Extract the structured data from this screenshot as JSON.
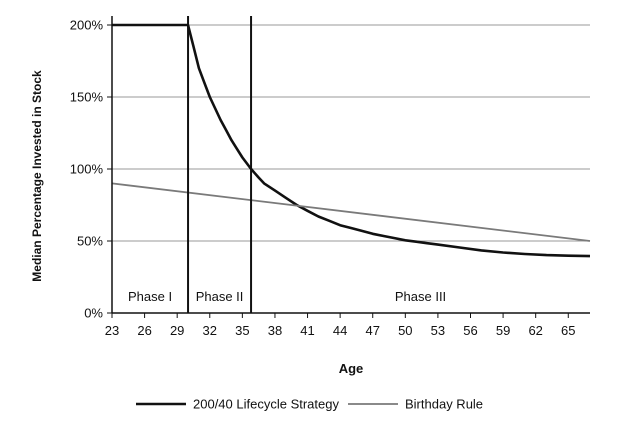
{
  "chart_data": {
    "type": "line",
    "title": "",
    "xlabel": "Age",
    "ylabel": "Median Percentage Invested in Stock",
    "xlim": [
      23,
      67
    ],
    "ylim": [
      0,
      200
    ],
    "x_ticks": [
      "23",
      "26",
      "29",
      "32",
      "35",
      "38",
      "41",
      "44",
      "47",
      "50",
      "53",
      "56",
      "59",
      "62",
      "65"
    ],
    "y_ticks": [
      "0%",
      "50%",
      "100%",
      "150%",
      "200%"
    ],
    "grid": "horizontal",
    "legend_position": "bottom",
    "phase_boundaries": [
      30,
      35.8
    ],
    "phase_labels": [
      "Phase I",
      "Phase II",
      "Phase III"
    ],
    "series": [
      {
        "name": "200/40 Lifecycle Strategy",
        "color": "#111111",
        "x": [
          23,
          29,
          30,
          30.5,
          31,
          31.5,
          32,
          32.5,
          33,
          33.5,
          34,
          34.5,
          35,
          35.8,
          36.5,
          37,
          38,
          39,
          40,
          41,
          42,
          43,
          44,
          45,
          46,
          47,
          48,
          49,
          50,
          51,
          52,
          53,
          55,
          57,
          59,
          61,
          63,
          65,
          67
        ],
        "y": [
          200,
          200,
          200,
          185,
          170,
          160,
          150,
          142,
          134,
          127,
          120,
          114,
          108,
          100,
          94,
          90,
          85,
          80,
          75,
          71,
          67,
          64,
          61,
          59,
          57,
          55,
          53.5,
          52,
          50.5,
          49.5,
          48.5,
          47.5,
          45.5,
          43.5,
          42,
          41,
          40.2,
          39.8,
          39.5
        ]
      },
      {
        "name": "Birthday Rule",
        "color": "#7a7a7a",
        "x": [
          23,
          67
        ],
        "y": [
          90,
          50
        ]
      }
    ]
  }
}
